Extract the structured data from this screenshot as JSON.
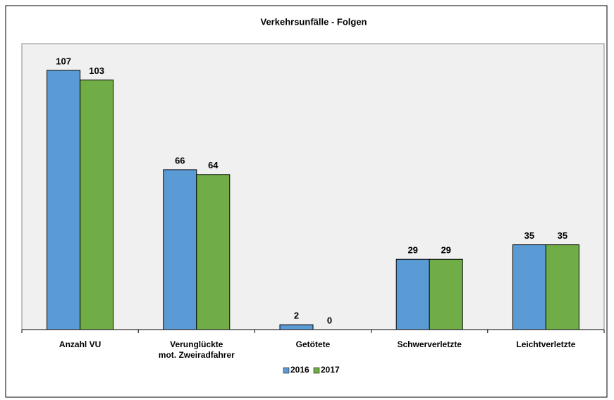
{
  "chart_data": {
    "type": "bar",
    "title": "Verkehrsunfälle - Folgen",
    "categories": [
      "Anzahl VU",
      "Verunglückte\nmot. Zweiradfahrer",
      "Getötete",
      "Schwerverletzte",
      "Leichtverletzte"
    ],
    "series": [
      {
        "name": "2016",
        "color": "#5b9bd5",
        "values": [
          107,
          66,
          2,
          29,
          35
        ]
      },
      {
        "name": "2017",
        "color": "#70ad47",
        "values": [
          103,
          64,
          0,
          29,
          35
        ]
      }
    ],
    "ylim": [
      0,
      118
    ],
    "legend": "bottom"
  }
}
